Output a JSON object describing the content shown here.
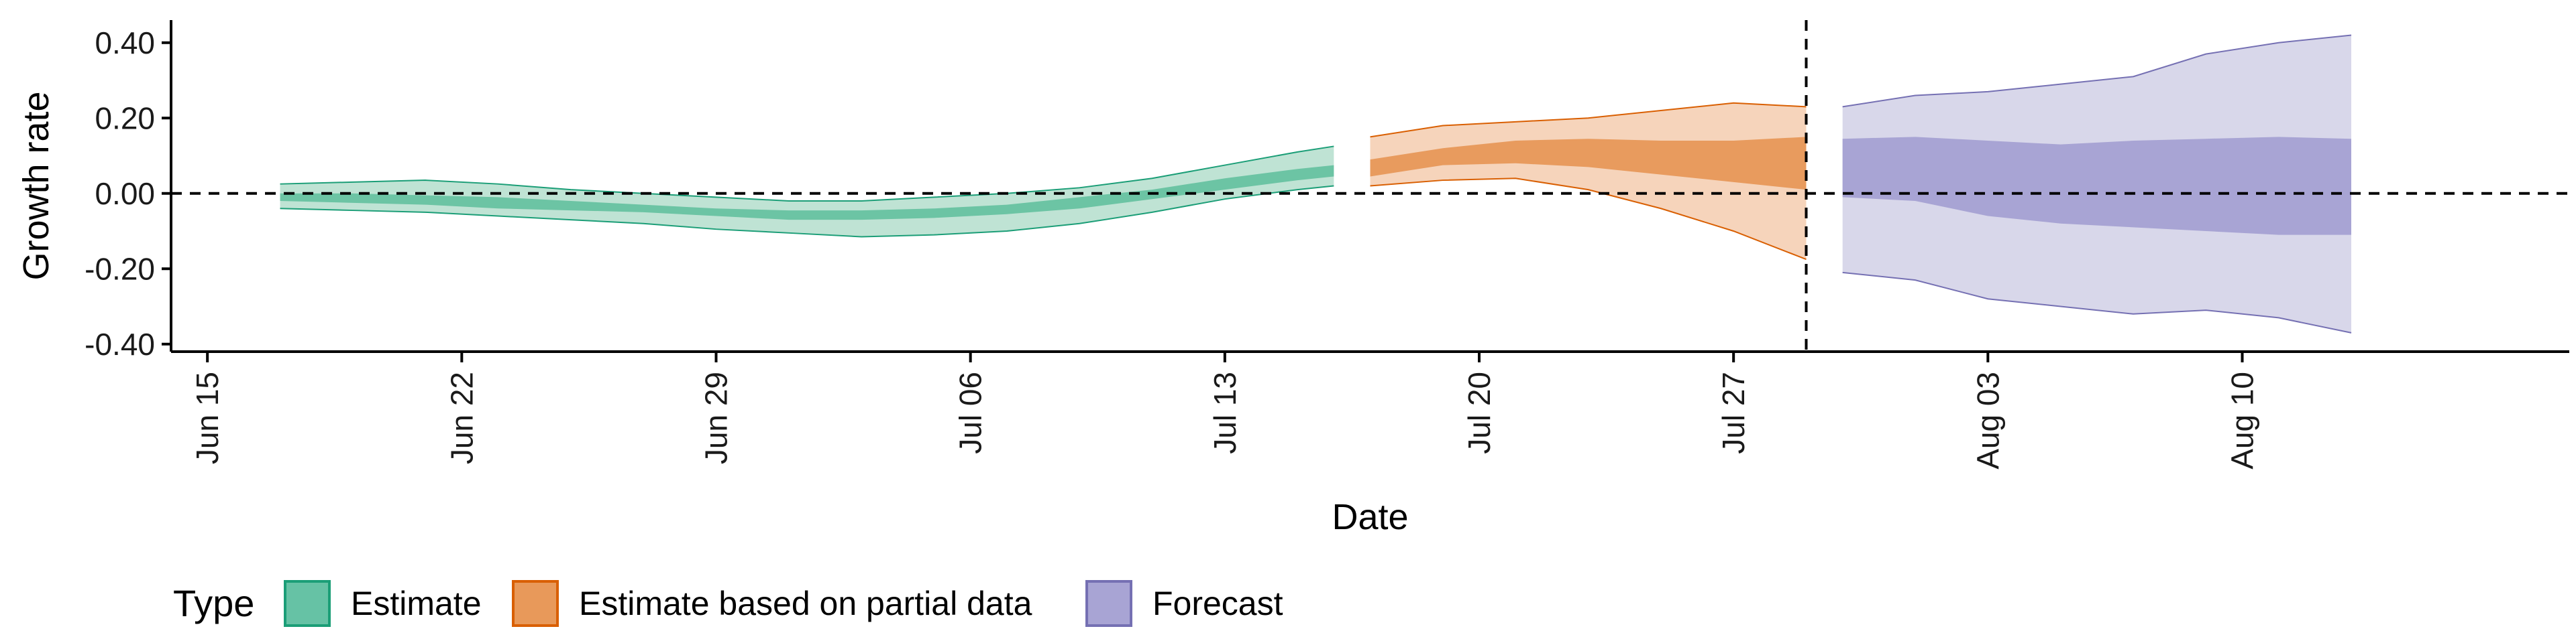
{
  "chart_data": {
    "type": "area",
    "title": "",
    "xlabel": "Date",
    "ylabel": "Growth rate",
    "ylim": [
      -0.42,
      0.46
    ],
    "xlim": [
      "2020-06-14",
      "2020-08-19"
    ],
    "y_ticks": [
      -0.4,
      -0.2,
      0.0,
      0.2,
      0.4
    ],
    "y_tick_labels": [
      "-0.40",
      "-0.20",
      "0.00",
      "0.20",
      "0.40"
    ],
    "x_ticks": [
      "2020-06-15",
      "2020-06-22",
      "2020-06-29",
      "2020-07-06",
      "2020-07-13",
      "2020-07-20",
      "2020-07-27",
      "2020-08-03",
      "2020-08-10"
    ],
    "x_tick_labels": [
      "Jun 15",
      "Jun 22",
      "Jun 29",
      "Jul 06",
      "Jul 13",
      "Jul 20",
      "Jul 27",
      "Aug 03",
      "Aug 10"
    ],
    "hline": 0.0,
    "vline": "2020-07-29",
    "grid": false,
    "legend": {
      "title": "Type",
      "position": "bottom-left",
      "entries": [
        {
          "label": "Estimate",
          "fill": "#66c2a5",
          "stroke": "#1b9e77"
        },
        {
          "label": "Estimate based on partial data",
          "fill": "#e8995a",
          "stroke": "#d95f02"
        },
        {
          "label": "Forecast",
          "fill": "#a8a4d4",
          "stroke": "#7570b3"
        }
      ]
    },
    "series": [
      {
        "name": "Estimate",
        "outer_fill": "#bfe3d4",
        "inner_fill": "#6cc4a4",
        "line_color": "#1b9e77",
        "x": [
          "2020-06-17",
          "2020-06-19",
          "2020-06-21",
          "2020-06-23",
          "2020-06-25",
          "2020-06-27",
          "2020-06-29",
          "2020-07-01",
          "2020-07-03",
          "2020-07-05",
          "2020-07-07",
          "2020-07-09",
          "2020-07-11",
          "2020-07-13",
          "2020-07-15",
          "2020-07-16"
        ],
        "lower90": [
          -0.04,
          -0.045,
          -0.05,
          -0.06,
          -0.07,
          -0.08,
          -0.095,
          -0.105,
          -0.115,
          -0.11,
          -0.1,
          -0.08,
          -0.05,
          -0.015,
          0.01,
          0.02
        ],
        "lower50": [
          -0.02,
          -0.025,
          -0.03,
          -0.04,
          -0.045,
          -0.05,
          -0.06,
          -0.07,
          -0.07,
          -0.065,
          -0.055,
          -0.04,
          -0.015,
          0.01,
          0.035,
          0.045
        ],
        "upper50": [
          0.0,
          0.0,
          -0.005,
          -0.01,
          -0.02,
          -0.03,
          -0.04,
          -0.045,
          -0.045,
          -0.04,
          -0.03,
          -0.01,
          0.01,
          0.04,
          0.065,
          0.075
        ],
        "upper90": [
          0.025,
          0.03,
          0.035,
          0.025,
          0.01,
          0.0,
          -0.01,
          -0.02,
          -0.02,
          -0.01,
          0.0,
          0.015,
          0.04,
          0.075,
          0.11,
          0.125
        ]
      },
      {
        "name": "Estimate based on partial data",
        "outer_fill": "#f6d4bb",
        "inner_fill": "#e89b5e",
        "line_color": "#d95f02",
        "x": [
          "2020-07-17",
          "2020-07-19",
          "2020-07-21",
          "2020-07-23",
          "2020-07-25",
          "2020-07-27",
          "2020-07-29"
        ],
        "lower90": [
          0.02,
          0.035,
          0.04,
          0.01,
          -0.04,
          -0.1,
          -0.175
        ],
        "lower50": [
          0.045,
          0.075,
          0.08,
          0.07,
          0.05,
          0.03,
          0.01
        ],
        "upper50": [
          0.09,
          0.12,
          0.14,
          0.145,
          0.14,
          0.14,
          0.15
        ],
        "upper90": [
          0.15,
          0.18,
          0.19,
          0.2,
          0.22,
          0.24,
          0.23
        ]
      },
      {
        "name": "Forecast",
        "outer_fill": "#d8d7ea",
        "inner_fill": "#a8a4d4",
        "line_color": "#7570b3",
        "x": [
          "2020-07-30",
          "2020-08-01",
          "2020-08-03",
          "2020-08-05",
          "2020-08-07",
          "2020-08-09",
          "2020-08-11",
          "2020-08-13"
        ],
        "lower90": [
          -0.21,
          -0.23,
          -0.28,
          -0.3,
          -0.32,
          -0.31,
          -0.33,
          -0.37
        ],
        "lower50": [
          -0.01,
          -0.02,
          -0.06,
          -0.08,
          -0.09,
          -0.1,
          -0.11,
          -0.11
        ],
        "upper50": [
          0.145,
          0.15,
          0.14,
          0.13,
          0.14,
          0.145,
          0.15,
          0.145
        ],
        "upper90": [
          0.23,
          0.26,
          0.27,
          0.29,
          0.31,
          0.37,
          0.4,
          0.42
        ]
      }
    ]
  }
}
